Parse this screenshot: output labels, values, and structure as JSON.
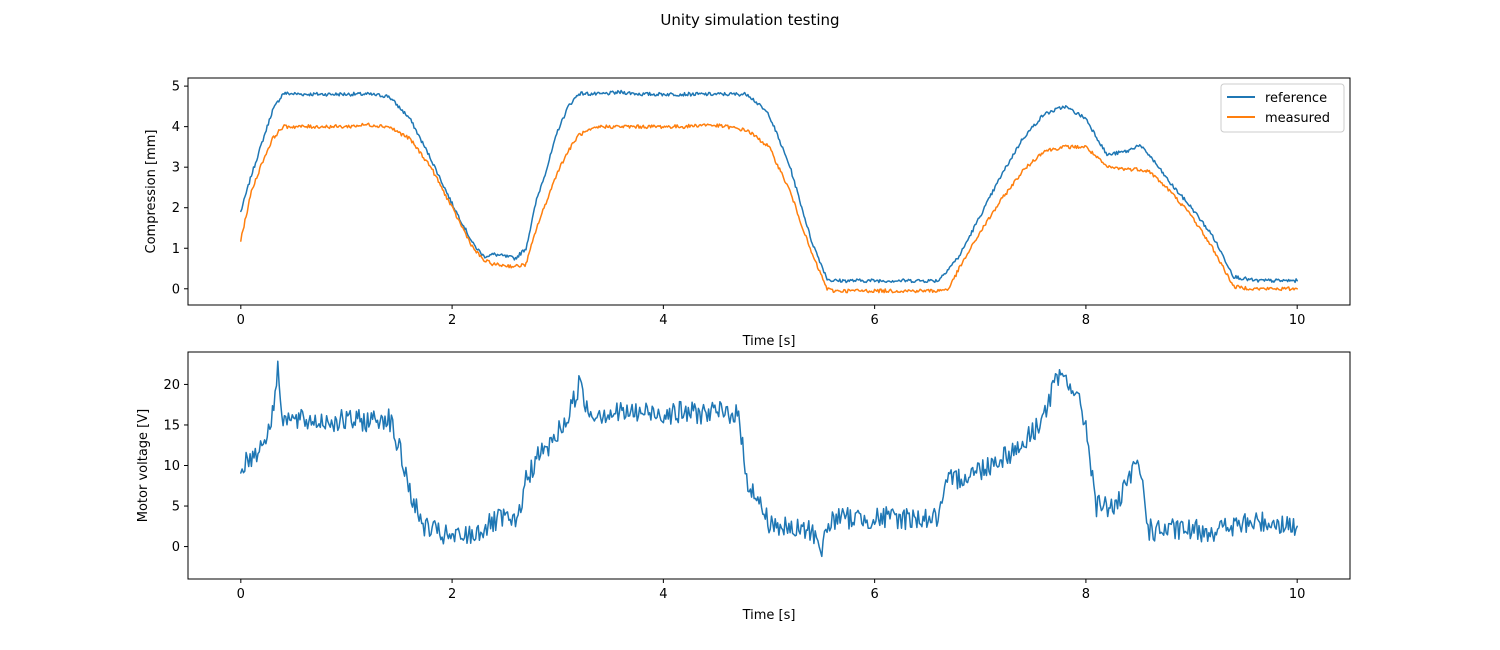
{
  "figure": {
    "title": "Unity simulation testing"
  },
  "chart_data": [
    {
      "type": "line",
      "title": "",
      "xlabel": "Time [s]",
      "ylabel": "Compression [mm]",
      "xlim": [
        -0.5,
        10.5
      ],
      "ylim": [
        -0.4,
        5.2
      ],
      "xticks": [
        0,
        2,
        4,
        6,
        8,
        10
      ],
      "xtick_labels": [
        "0",
        "2",
        "4",
        "6",
        "8",
        "10"
      ],
      "yticks": [
        0,
        1,
        2,
        3,
        4,
        5
      ],
      "ytick_labels": [
        "0",
        "1",
        "2",
        "3",
        "4",
        "5"
      ],
      "grid": false,
      "legend_position": "top-right",
      "series": [
        {
          "name": "reference",
          "color": "#1f77b4",
          "x": [
            0,
            0.1,
            0.2,
            0.3,
            0.4,
            0.6,
            0.8,
            1.0,
            1.2,
            1.4,
            1.6,
            1.8,
            2.0,
            2.2,
            2.3,
            2.4,
            2.6,
            2.7,
            2.8,
            2.9,
            3.0,
            3.1,
            3.2,
            3.4,
            3.6,
            3.8,
            4.0,
            4.2,
            4.4,
            4.6,
            4.8,
            5.0,
            5.2,
            5.4,
            5.55,
            5.6,
            6.0,
            6.4,
            6.6,
            6.8,
            7.0,
            7.2,
            7.4,
            7.6,
            7.8,
            8.0,
            8.2,
            8.4,
            8.5,
            8.6,
            8.8,
            9.0,
            9.2,
            9.4,
            9.6,
            9.8,
            10.0
          ],
          "y": [
            1.9,
            2.8,
            3.6,
            4.4,
            4.82,
            4.8,
            4.8,
            4.8,
            4.8,
            4.75,
            4.2,
            3.2,
            2.1,
            1.1,
            0.8,
            0.85,
            0.75,
            1.0,
            2.2,
            3.0,
            3.9,
            4.5,
            4.82,
            4.8,
            4.85,
            4.8,
            4.8,
            4.8,
            4.8,
            4.8,
            4.8,
            4.3,
            3.0,
            1.2,
            0.25,
            0.2,
            0.2,
            0.2,
            0.2,
            0.8,
            1.8,
            2.8,
            3.7,
            4.3,
            4.5,
            4.2,
            3.3,
            3.4,
            3.55,
            3.3,
            2.6,
            2.0,
            1.3,
            0.3,
            0.2,
            0.2,
            0.2
          ]
        },
        {
          "name": "measured",
          "color": "#ff7f0e",
          "x": [
            0,
            0.1,
            0.2,
            0.3,
            0.4,
            0.6,
            0.8,
            1.0,
            1.2,
            1.4,
            1.6,
            1.8,
            2.0,
            2.2,
            2.3,
            2.4,
            2.6,
            2.7,
            2.8,
            2.9,
            3.0,
            3.1,
            3.2,
            3.4,
            3.6,
            3.8,
            4.0,
            4.2,
            4.4,
            4.6,
            4.8,
            5.0,
            5.2,
            5.4,
            5.55,
            5.6,
            6.0,
            6.4,
            6.6,
            6.7,
            6.8,
            7.0,
            7.2,
            7.4,
            7.6,
            7.8,
            8.0,
            8.2,
            8.4,
            8.5,
            8.6,
            8.8,
            9.0,
            9.2,
            9.4,
            9.6,
            9.8,
            10.0
          ],
          "y": [
            1.2,
            2.4,
            3.1,
            3.7,
            4.0,
            4.0,
            4.0,
            4.0,
            4.05,
            4.0,
            3.7,
            3.0,
            2.0,
            1.0,
            0.7,
            0.6,
            0.55,
            0.6,
            1.5,
            2.2,
            2.9,
            3.4,
            3.8,
            4.0,
            4.0,
            4.0,
            4.0,
            4.0,
            4.05,
            4.0,
            3.9,
            3.5,
            2.4,
            0.9,
            0.0,
            -0.05,
            -0.05,
            -0.05,
            -0.05,
            0.0,
            0.5,
            1.4,
            2.2,
            2.9,
            3.4,
            3.5,
            3.5,
            3.0,
            2.95,
            2.95,
            2.9,
            2.4,
            1.8,
            1.0,
            0.05,
            0.0,
            0.0,
            0.0
          ]
        }
      ]
    },
    {
      "type": "line",
      "title": "",
      "xlabel": "Time [s]",
      "ylabel": "Motor voltage [V]",
      "xlim": [
        -0.5,
        10.5
      ],
      "ylim": [
        -4,
        24
      ],
      "xticks": [
        0,
        2,
        4,
        6,
        8,
        10
      ],
      "xtick_labels": [
        "0",
        "2",
        "4",
        "6",
        "8",
        "10"
      ],
      "yticks": [
        0,
        5,
        10,
        15,
        20
      ],
      "ytick_labels": [
        "0",
        "5",
        "10",
        "15",
        "20"
      ],
      "grid": false,
      "series": [
        {
          "color": "#1f77b4",
          "x": [
            0,
            0.1,
            0.2,
            0.3,
            0.35,
            0.4,
            0.5,
            0.8,
            1.0,
            1.2,
            1.4,
            1.5,
            1.6,
            1.7,
            1.8,
            2.0,
            2.2,
            2.4,
            2.5,
            2.6,
            2.7,
            2.8,
            2.9,
            3.0,
            3.1,
            3.2,
            3.3,
            3.5,
            3.8,
            4.0,
            4.2,
            4.5,
            4.7,
            4.8,
            5.0,
            5.2,
            5.4,
            5.5,
            5.6,
            6.0,
            6.4,
            6.6,
            6.7,
            7.0,
            7.2,
            7.4,
            7.6,
            7.7,
            7.8,
            7.9,
            8.0,
            8.1,
            8.3,
            8.4,
            8.5,
            8.6,
            8.7,
            9.0,
            9.2,
            9.4,
            9.6,
            9.8,
            10.0
          ],
          "y": [
            10,
            11,
            12.5,
            16,
            22,
            16,
            15.5,
            15.5,
            15.5,
            15.5,
            16,
            12,
            7,
            3,
            2,
            1,
            1.5,
            3,
            3.5,
            2.5,
            8,
            11,
            12,
            14,
            16,
            20,
            16.5,
            16.5,
            16.5,
            16.5,
            16.5,
            16.5,
            16.5,
            8,
            3,
            2,
            2,
            0,
            3.5,
            3.5,
            3.5,
            3.5,
            8,
            9.5,
            11,
            12.5,
            16,
            20,
            21,
            19,
            15,
            5,
            5,
            8,
            10.5,
            2,
            2,
            2,
            2,
            2.5,
            3,
            3,
            2.5
          ]
        }
      ]
    }
  ]
}
